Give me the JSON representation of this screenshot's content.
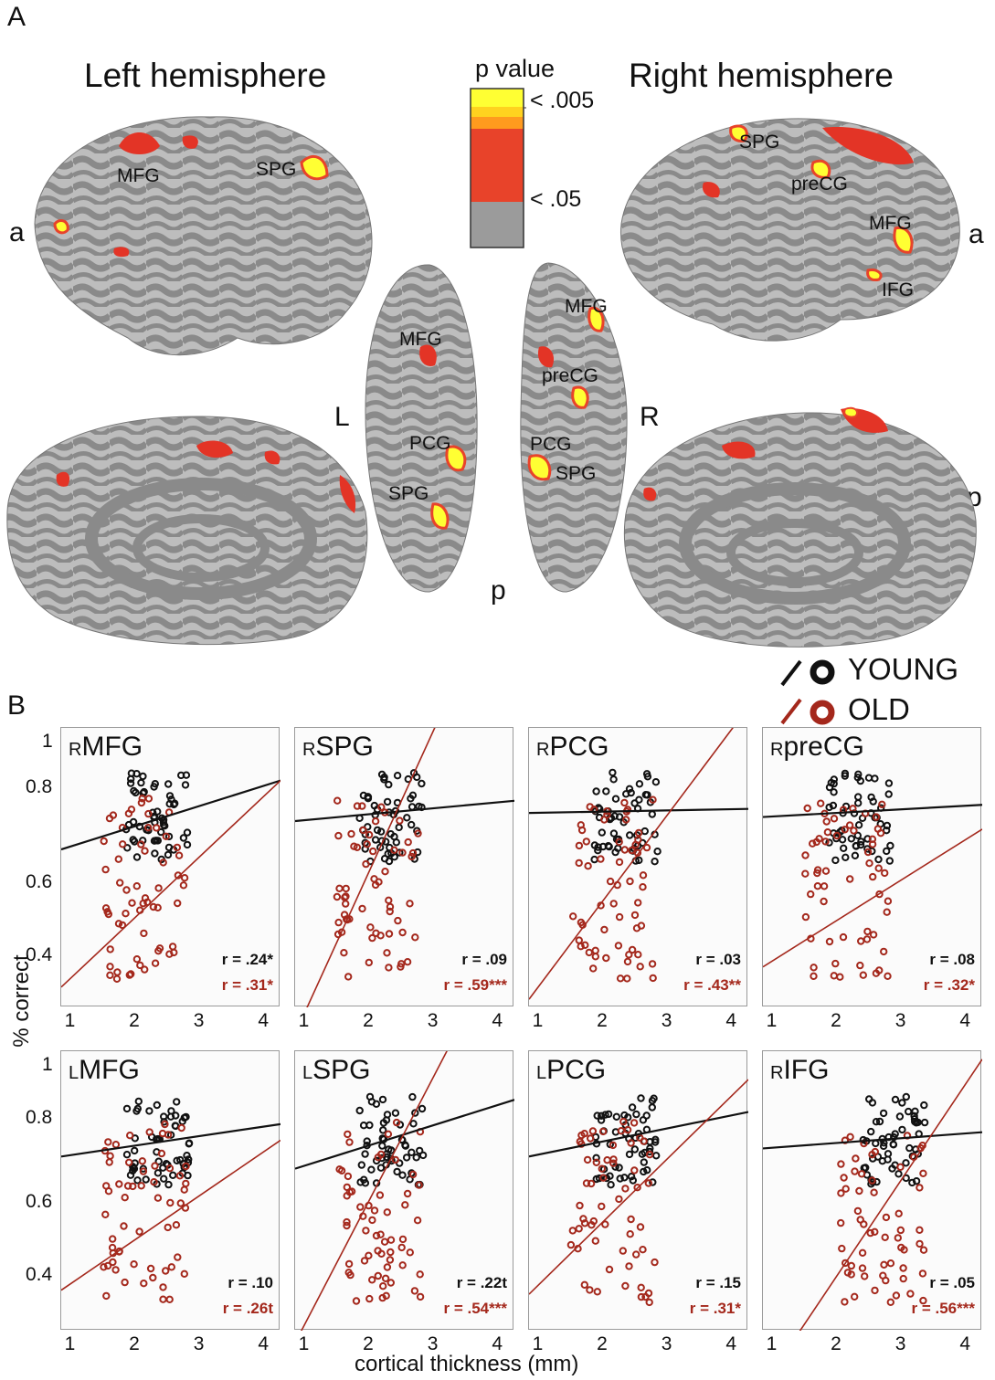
{
  "panel_a": {
    "letter": "A",
    "left_title": "Left hemisphere",
    "right_title": "Right hemisphere",
    "side_labels": {
      "a": "a",
      "p": "p",
      "L": "L",
      "R": "R",
      "bottom_p": "p"
    },
    "legend": {
      "title": "p value",
      "high": "< .005",
      "low": "< .05",
      "colors": [
        "#ffff33",
        "#ffd21f",
        "#ff9a1e",
        "#f3741a",
        "#e8432a",
        "#e33426",
        "#9b9b9b"
      ]
    },
    "regions": {
      "left_lateral": [
        "MFG",
        "SPG"
      ],
      "right_lateral": [
        "SPG",
        "preCG",
        "MFG",
        "IFG"
      ],
      "left_dorsal": [
        "MFG",
        "PCG",
        "SPG"
      ],
      "right_dorsal": [
        "MFG",
        "preCG",
        "PCG",
        "SPG"
      ]
    }
  },
  "panel_b": {
    "letter": "B",
    "legend": {
      "young": "YOUNG",
      "old": "OLD",
      "young_color": "#111111",
      "old_color": "#a4281c"
    },
    "ylabel": "% correct",
    "xlabel": "cortical thickness (mm)",
    "xticks": [
      "1",
      "2",
      "3",
      "4"
    ],
    "yticks": [
      "0.4",
      "0.6",
      "0.8",
      "1"
    ]
  },
  "chart_data": [
    {
      "type": "scatter",
      "title_prefix": "R",
      "title": "MFG",
      "xlim": [
        0.85,
        4.25
      ],
      "ylim": [
        0.33,
        1.02
      ],
      "series": [
        {
          "name": "YOUNG",
          "r_label": "r = .24*",
          "line": [
            [
              0.85,
              0.72
            ],
            [
              4.25,
              0.89
            ]
          ]
        },
        {
          "name": "OLD",
          "r_label": "r = .31*",
          "line": [
            [
              0.85,
              0.38
            ],
            [
              4.25,
              0.89
            ]
          ]
        }
      ]
    },
    {
      "type": "scatter",
      "title_prefix": "R",
      "title": "SPG",
      "xlim": [
        0.85,
        4.25
      ],
      "ylim": [
        0.33,
        1.02
      ],
      "series": [
        {
          "name": "YOUNG",
          "r_label": "r = .09",
          "line": [
            [
              0.85,
              0.79
            ],
            [
              4.25,
              0.84
            ]
          ]
        },
        {
          "name": "OLD",
          "r_label": "r = .59***",
          "line": [
            [
              0.95,
              0.3
            ],
            [
              3.1,
              1.05
            ]
          ]
        }
      ]
    },
    {
      "type": "scatter",
      "title_prefix": "R",
      "title": "PCG",
      "xlim": [
        0.85,
        4.25
      ],
      "ylim": [
        0.33,
        1.02
      ],
      "series": [
        {
          "name": "YOUNG",
          "r_label": "r = .03",
          "line": [
            [
              0.85,
              0.81
            ],
            [
              4.25,
              0.82
            ]
          ]
        },
        {
          "name": "OLD",
          "r_label": "r = .43**",
          "line": [
            [
              0.85,
              0.35
            ],
            [
              4.15,
              1.05
            ]
          ]
        }
      ]
    },
    {
      "type": "scatter",
      "title_prefix": "R",
      "title": "preCG",
      "xlim": [
        0.85,
        4.25
      ],
      "ylim": [
        0.33,
        1.02
      ],
      "series": [
        {
          "name": "YOUNG",
          "r_label": "r = .08",
          "line": [
            [
              0.85,
              0.8
            ],
            [
              4.25,
              0.83
            ]
          ]
        },
        {
          "name": "OLD",
          "r_label": "r = .32*",
          "line": [
            [
              0.85,
              0.43
            ],
            [
              4.25,
              0.77
            ]
          ]
        }
      ]
    },
    {
      "type": "scatter",
      "title_prefix": "L",
      "title": "MFG",
      "xlim": [
        0.85,
        4.25
      ],
      "ylim": [
        0.33,
        1.02
      ],
      "series": [
        {
          "name": "YOUNG",
          "r_label": "r = .10",
          "line": [
            [
              0.85,
              0.76
            ],
            [
              4.25,
              0.84
            ]
          ]
        },
        {
          "name": "OLD",
          "r_label": "r = .26t",
          "line": [
            [
              0.85,
              0.43
            ],
            [
              4.25,
              0.8
            ]
          ]
        }
      ]
    },
    {
      "type": "scatter",
      "title_prefix": "L",
      "title": "SPG",
      "xlim": [
        0.85,
        4.25
      ],
      "ylim": [
        0.33,
        1.02
      ],
      "series": [
        {
          "name": "YOUNG",
          "r_label": "r = .22t",
          "line": [
            [
              0.85,
              0.73
            ],
            [
              4.25,
              0.9
            ]
          ]
        },
        {
          "name": "OLD",
          "r_label": "r = .54***",
          "line": [
            [
              0.85,
              0.3
            ],
            [
              3.3,
              1.05
            ]
          ]
        }
      ]
    },
    {
      "type": "scatter",
      "title_prefix": "L",
      "title": "PCG",
      "xlim": [
        0.85,
        4.25
      ],
      "ylim": [
        0.33,
        1.02
      ],
      "series": [
        {
          "name": "YOUNG",
          "r_label": "r = .15",
          "line": [
            [
              0.85,
              0.76
            ],
            [
              4.25,
              0.87
            ]
          ]
        },
        {
          "name": "OLD",
          "r_label": "r = .31*",
          "line": [
            [
              0.85,
              0.42
            ],
            [
              4.25,
              0.95
            ]
          ]
        }
      ]
    },
    {
      "type": "scatter",
      "title_prefix": "R",
      "title": "IFG",
      "xlim": [
        0.85,
        4.25
      ],
      "ylim": [
        0.33,
        1.02
      ],
      "series": [
        {
          "name": "YOUNG",
          "r_label": "r = .05",
          "line": [
            [
              0.85,
              0.78
            ],
            [
              4.25,
              0.82
            ]
          ]
        },
        {
          "name": "OLD",
          "r_label": "r = .56***",
          "line": [
            [
              1.3,
              0.3
            ],
            [
              4.25,
              1.0
            ]
          ]
        }
      ]
    }
  ]
}
